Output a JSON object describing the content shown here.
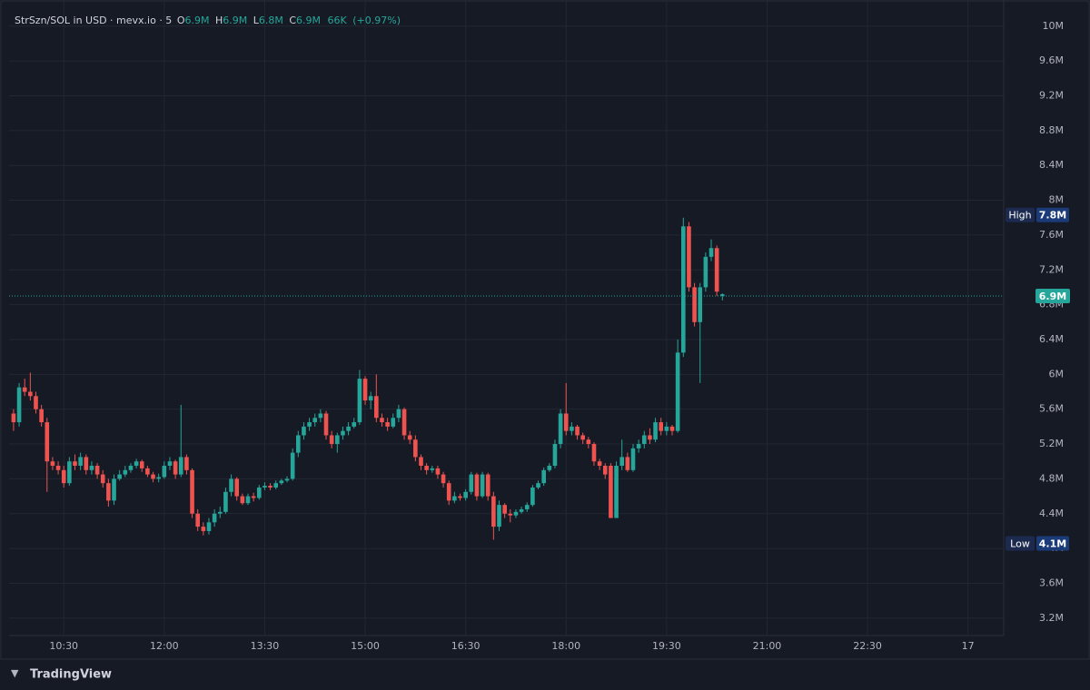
{
  "header": {
    "symbol": "StrSzn/SOL in USD · mevx.io · 5",
    "ohlc": [
      {
        "key": "O",
        "value": "6.9M"
      },
      {
        "key": "H",
        "value": "6.9M"
      },
      {
        "key": "L",
        "value": "6.8M"
      },
      {
        "key": "C",
        "value": "6.9M"
      }
    ],
    "volume": "66K",
    "change": "(+0.97%)"
  },
  "chart_data": {
    "type": "candlestick",
    "up_color": "#26a69a",
    "down_color": "#ef5350",
    "grid": true,
    "x": [
      585,
      590,
      595,
      600,
      605,
      610,
      615,
      620,
      625,
      630,
      635,
      640,
      645,
      650,
      655,
      660,
      665,
      670,
      675,
      680,
      685,
      690,
      695,
      700,
      705,
      710,
      715,
      720,
      725,
      730,
      735,
      740,
      745,
      750,
      755,
      760,
      765,
      770,
      775,
      780,
      785,
      790,
      795,
      800,
      805,
      810,
      815,
      820,
      825,
      830,
      835,
      840,
      845,
      850,
      855,
      860,
      865,
      870,
      875,
      880,
      885,
      890,
      895,
      900,
      905,
      910,
      915,
      920,
      925,
      930,
      935,
      940,
      945,
      950,
      955,
      960,
      965,
      970,
      975,
      980,
      985,
      990,
      995,
      1000,
      1005,
      1010,
      1015,
      1020,
      1025,
      1030,
      1035,
      1040,
      1045,
      1050,
      1055,
      1060,
      1065,
      1070,
      1075,
      1080,
      1085,
      1090,
      1095,
      1100,
      1105,
      1110,
      1115,
      1120,
      1125,
      1130,
      1135,
      1140,
      1145,
      1150,
      1155,
      1160,
      1165,
      1170,
      1175,
      1180,
      1185,
      1190,
      1195,
      1200,
      1205,
      1210,
      1215,
      1220
    ],
    "open": [
      5.55,
      5.45,
      5.85,
      5.8,
      5.75,
      5.6,
      5.45,
      5.0,
      4.95,
      4.9,
      4.75,
      5.0,
      4.95,
      5.05,
      4.9,
      4.95,
      4.85,
      4.75,
      4.55,
      4.8,
      4.85,
      4.9,
      4.95,
      5.0,
      4.92,
      4.85,
      4.8,
      4.82,
      4.95,
      5.0,
      4.85,
      5.05,
      4.9,
      4.4,
      4.25,
      4.2,
      4.3,
      4.4,
      4.42,
      4.65,
      4.8,
      4.6,
      4.52,
      4.6,
      4.58,
      4.7,
      4.72,
      4.7,
      4.75,
      4.78,
      4.8,
      5.1,
      5.3,
      5.4,
      5.45,
      5.5,
      5.55,
      5.3,
      5.2,
      5.3,
      5.35,
      5.4,
      5.45,
      5.95,
      5.7,
      5.75,
      5.5,
      5.45,
      5.4,
      5.5,
      5.6,
      5.3,
      5.25,
      5.05,
      4.95,
      4.9,
      4.92,
      4.85,
      4.75,
      4.55,
      4.6,
      4.58,
      4.65,
      4.85,
      4.6,
      4.85,
      4.6,
      4.25,
      4.5,
      4.4,
      4.38,
      4.42,
      4.45,
      4.5,
      4.7,
      4.75,
      4.9,
      4.95,
      5.2,
      5.55,
      5.35,
      5.4,
      5.3,
      5.25,
      5.2,
      5.0,
      4.95,
      4.95,
      4.35,
      4.95,
      5.05,
      4.9,
      5.15,
      5.2,
      5.3,
      5.25,
      5.45,
      5.35,
      5.4,
      5.35,
      6.25,
      7.7,
      7.0,
      6.6,
      7.0,
      7.35,
      7.45,
      6.9
    ],
    "high": [
      5.6,
      5.9,
      5.95,
      6.02,
      5.8,
      5.65,
      5.5,
      5.05,
      5.0,
      4.95,
      5.05,
      5.08,
      5.1,
      5.08,
      5.0,
      4.98,
      4.9,
      4.8,
      4.85,
      4.9,
      4.95,
      4.98,
      5.03,
      5.02,
      4.95,
      4.88,
      4.86,
      5.0,
      5.05,
      5.02,
      5.65,
      5.08,
      4.92,
      4.45,
      4.3,
      4.35,
      4.45,
      4.48,
      4.7,
      4.85,
      4.82,
      4.63,
      4.63,
      4.64,
      4.73,
      4.76,
      4.75,
      4.78,
      4.8,
      4.83,
      5.15,
      5.35,
      5.45,
      5.5,
      5.55,
      5.6,
      5.58,
      5.35,
      5.33,
      5.4,
      5.45,
      5.5,
      6.05,
      5.98,
      5.8,
      6.0,
      5.55,
      5.5,
      5.55,
      5.65,
      5.62,
      5.35,
      5.3,
      5.08,
      4.98,
      4.95,
      4.95,
      4.88,
      4.78,
      4.65,
      4.63,
      4.68,
      4.88,
      4.87,
      4.88,
      4.87,
      4.65,
      4.55,
      4.52,
      4.45,
      4.45,
      4.48,
      4.53,
      4.73,
      4.78,
      4.93,
      4.98,
      5.25,
      5.6,
      5.9,
      5.45,
      5.42,
      5.33,
      5.28,
      5.22,
      5.03,
      4.98,
      4.98,
      5.0,
      5.25,
      5.1,
      5.2,
      5.25,
      5.35,
      5.38,
      5.5,
      5.5,
      5.45,
      5.42,
      6.4,
      7.8,
      7.75,
      7.05,
      7.05,
      7.4,
      7.55,
      7.48,
      6.93
    ],
    "low": [
      5.35,
      5.4,
      5.75,
      5.7,
      5.55,
      5.4,
      4.65,
      4.9,
      4.85,
      4.7,
      4.72,
      4.9,
      4.9,
      4.85,
      4.85,
      4.8,
      4.7,
      4.48,
      4.5,
      4.78,
      4.82,
      4.87,
      4.92,
      4.88,
      4.82,
      4.76,
      4.76,
      4.8,
      4.9,
      4.8,
      4.82,
      4.85,
      4.35,
      4.2,
      4.15,
      4.16,
      4.25,
      4.35,
      4.4,
      4.6,
      4.55,
      4.5,
      4.5,
      4.54,
      4.56,
      4.67,
      4.67,
      4.68,
      4.73,
      4.76,
      4.78,
      5.05,
      5.25,
      5.35,
      5.4,
      5.45,
      5.25,
      5.15,
      5.1,
      5.25,
      5.3,
      5.38,
      5.42,
      5.65,
      5.6,
      5.45,
      5.4,
      5.35,
      5.38,
      5.45,
      5.25,
      5.2,
      5.0,
      4.9,
      4.85,
      4.87,
      4.8,
      4.7,
      4.5,
      4.52,
      4.55,
      4.55,
      4.62,
      4.55,
      4.58,
      4.55,
      4.1,
      4.2,
      4.35,
      4.3,
      4.35,
      4.4,
      4.42,
      4.48,
      4.68,
      4.72,
      4.88,
      4.92,
      5.15,
      5.3,
      5.3,
      5.25,
      5.2,
      5.15,
      4.95,
      4.9,
      4.8,
      4.35,
      4.35,
      4.9,
      4.88,
      4.88,
      5.1,
      5.15,
      5.2,
      5.22,
      5.3,
      5.3,
      5.3,
      5.33,
      6.2,
      6.95,
      6.55,
      5.9,
      6.95,
      7.3,
      6.9,
      6.85
    ],
    "close": [
      5.45,
      5.85,
      5.8,
      5.75,
      5.6,
      5.45,
      5.0,
      4.95,
      4.9,
      4.75,
      5.0,
      4.95,
      5.05,
      4.9,
      4.95,
      4.85,
      4.75,
      4.55,
      4.8,
      4.85,
      4.9,
      4.95,
      5.0,
      4.92,
      4.85,
      4.8,
      4.82,
      4.95,
      5.0,
      4.85,
      5.05,
      4.9,
      4.4,
      4.25,
      4.2,
      4.3,
      4.4,
      4.42,
      4.65,
      4.8,
      4.6,
      4.52,
      4.6,
      4.58,
      4.7,
      4.72,
      4.7,
      4.75,
      4.78,
      4.8,
      5.1,
      5.3,
      5.4,
      5.45,
      5.5,
      5.55,
      5.3,
      5.2,
      5.3,
      5.35,
      5.4,
      5.45,
      5.95,
      5.7,
      5.75,
      5.5,
      5.45,
      5.4,
      5.5,
      5.6,
      5.3,
      5.25,
      5.05,
      4.95,
      4.9,
      4.92,
      4.85,
      4.75,
      4.55,
      4.6,
      4.58,
      4.65,
      4.85,
      4.6,
      4.85,
      4.6,
      4.25,
      4.5,
      4.4,
      4.38,
      4.42,
      4.45,
      4.5,
      4.7,
      4.75,
      4.9,
      4.95,
      5.2,
      5.55,
      5.35,
      5.4,
      5.3,
      5.25,
      5.2,
      5.0,
      4.95,
      4.85,
      4.35,
      4.95,
      5.05,
      4.9,
      5.15,
      5.2,
      5.3,
      5.25,
      5.45,
      5.35,
      5.4,
      5.35,
      6.25,
      7.7,
      7.0,
      6.6,
      7.0,
      7.35,
      7.45,
      6.95,
      6.92
    ],
    "xlim": [
      581,
      1472
    ],
    "xticks": [
      {
        "value": 630,
        "label": "10:30"
      },
      {
        "value": 720,
        "label": "12:00"
      },
      {
        "value": 810,
        "label": "13:30"
      },
      {
        "value": 900,
        "label": "15:00"
      },
      {
        "value": 990,
        "label": "16:30"
      },
      {
        "value": 1080,
        "label": "18:00"
      },
      {
        "value": 1170,
        "label": "19:30"
      },
      {
        "value": 1260,
        "label": "21:00"
      },
      {
        "value": 1350,
        "label": "22:30"
      },
      {
        "value": 1440,
        "label": "17"
      }
    ],
    "ylim": [
      3.0,
      10.3
    ],
    "yticks": [
      {
        "value": 3.2,
        "label": "3.2M"
      },
      {
        "value": 3.6,
        "label": "3.6M"
      },
      {
        "value": 4,
        "label": "4M"
      },
      {
        "value": 4.4,
        "label": "4.4M"
      },
      {
        "value": 4.8,
        "label": "4.8M"
      },
      {
        "value": 5.2,
        "label": "5.2M"
      },
      {
        "value": 5.6,
        "label": "5.6M"
      },
      {
        "value": 6,
        "label": "6M"
      },
      {
        "value": 6.4,
        "label": "6.4M"
      },
      {
        "value": 6.8,
        "label": "6.8M"
      },
      {
        "value": 7.2,
        "label": "7.2M"
      },
      {
        "value": 7.6,
        "label": "7.6M"
      },
      {
        "value": 8,
        "label": "8M"
      },
      {
        "value": 8.4,
        "label": "8.4M"
      },
      {
        "value": 8.8,
        "label": "8.8M"
      },
      {
        "value": 9.2,
        "label": "9.2M"
      },
      {
        "value": 9.6,
        "label": "9.6M"
      },
      {
        "value": 10,
        "label": "10M"
      }
    ],
    "last_price": {
      "value": 6.9,
      "label": "6.9M"
    },
    "high_marker": {
      "text": "High",
      "value": 7.8,
      "label": "7.8M"
    },
    "low_marker": {
      "text": "Low",
      "value": 4.1,
      "label": "4.1M"
    }
  },
  "footer": {
    "brand": "TradingView"
  }
}
